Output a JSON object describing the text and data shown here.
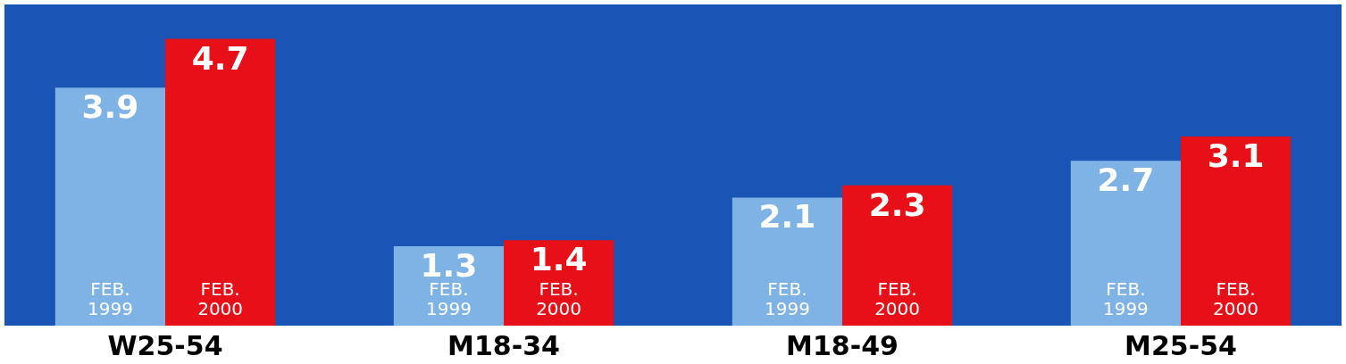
{
  "chart_data": {
    "type": "bar",
    "categories": [
      "W25-54",
      "M18-34",
      "M18-49",
      "M25-54"
    ],
    "series": [
      {
        "name": "FEB.\n1999",
        "color": "#7fb3e6",
        "values": [
          3.9,
          1.3,
          2.1,
          2.7
        ]
      },
      {
        "name": "FEB.\n2000",
        "color": "#e81018",
        "values": [
          4.7,
          1.4,
          2.3,
          3.1
        ]
      }
    ],
    "data_labels": true,
    "grid": false
  }
}
